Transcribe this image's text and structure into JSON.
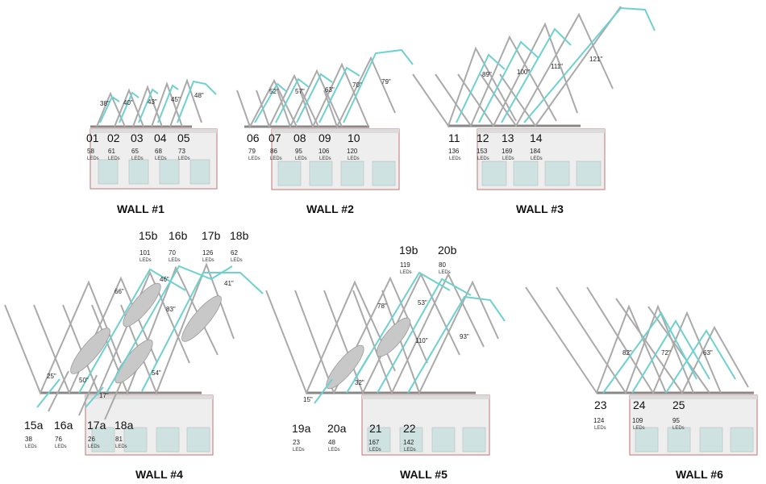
{
  "unit_label": "LEDs",
  "walls": [
    {
      "title": "WALL #1",
      "angles": [
        "38\"",
        "40\"",
        "43\"",
        "45\"",
        "48\""
      ],
      "segments": [
        {
          "id": "01",
          "leds": "58"
        },
        {
          "id": "02",
          "leds": "61"
        },
        {
          "id": "03",
          "leds": "65"
        },
        {
          "id": "04",
          "leds": "68"
        },
        {
          "id": "05",
          "leds": "73"
        }
      ]
    },
    {
      "title": "WALL #2",
      "angles": [
        "52\"",
        "57\"",
        "63\"",
        "70\"",
        "79\""
      ],
      "segments": [
        {
          "id": "06",
          "leds": "79"
        },
        {
          "id": "07",
          "leds": "86"
        },
        {
          "id": "08",
          "leds": "95"
        },
        {
          "id": "09",
          "leds": "106"
        },
        {
          "id": "10",
          "leds": "120"
        }
      ]
    },
    {
      "title": "WALL #3",
      "angles": [
        "89\"",
        "100\"",
        "111\"",
        "121\""
      ],
      "segments": [
        {
          "id": "11",
          "leds": "136"
        },
        {
          "id": "12",
          "leds": "153"
        },
        {
          "id": "13",
          "leds": "169"
        },
        {
          "id": "14",
          "leds": "184"
        }
      ]
    },
    {
      "title": "WALL #4",
      "angles": [
        "25\"",
        "50\"",
        "17\"",
        "54\"",
        "66\"",
        "46\"",
        "83\"",
        "41\""
      ],
      "segments": [
        {
          "id": "15a",
          "leds": "38"
        },
        {
          "id": "16a",
          "leds": "76"
        },
        {
          "id": "17a",
          "leds": "26"
        },
        {
          "id": "18a",
          "leds": "81"
        },
        {
          "id": "15b",
          "leds": "101"
        },
        {
          "id": "16b",
          "leds": "70"
        },
        {
          "id": "17b",
          "leds": "126"
        },
        {
          "id": "18b",
          "leds": "62"
        }
      ]
    },
    {
      "title": "WALL #5",
      "angles": [
        "15\"",
        "32\"",
        "78\"",
        "53\"",
        "110\"",
        "93\""
      ],
      "segments": [
        {
          "id": "19a",
          "leds": "23"
        },
        {
          "id": "20a",
          "leds": "48"
        },
        {
          "id": "21",
          "leds": "167"
        },
        {
          "id": "22",
          "leds": "142"
        },
        {
          "id": "19b",
          "leds": "119"
        },
        {
          "id": "20b",
          "leds": "80"
        }
      ]
    },
    {
      "title": "WALL #6",
      "angles": [
        "82\"",
        "72\"",
        "63\""
      ],
      "segments": [
        {
          "id": "23",
          "leds": "124"
        },
        {
          "id": "24",
          "leds": "109"
        },
        {
          "id": "25",
          "leds": "95"
        }
      ]
    }
  ]
}
